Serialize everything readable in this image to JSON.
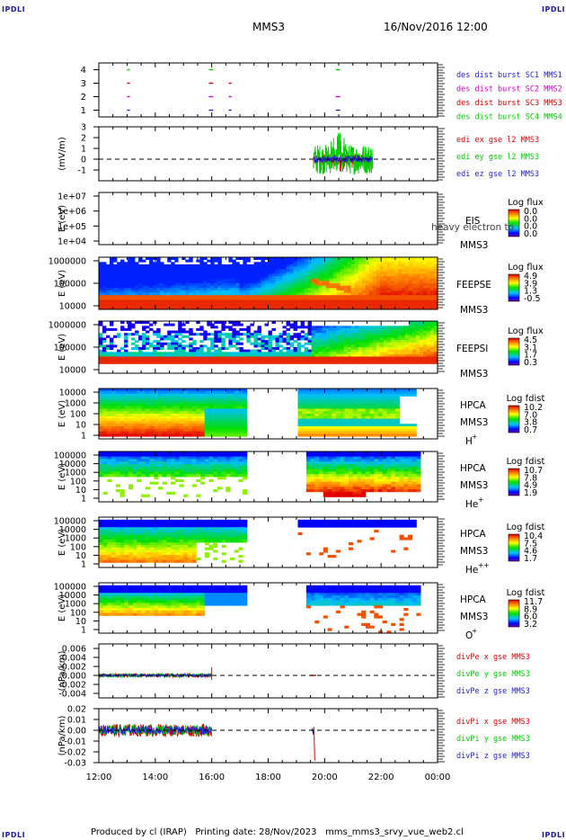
{
  "corner_label": "IPDLI",
  "header": {
    "spacecraft": "MMS3",
    "datetime": "16/Nov/2016 12:00"
  },
  "footer": {
    "credit": "Produced by cl (IRAP)",
    "printing": "Printing date: 28/Nov/2023",
    "file": "mms_mms3_srvy_vue_web2.cl"
  },
  "time_axis": {
    "ticks": [
      "12:00",
      "14:00",
      "16:00",
      "18:00",
      "20:00",
      "22:00",
      "00:00"
    ],
    "values_h": [
      12,
      14,
      16,
      18,
      20,
      22,
      24
    ]
  },
  "colors": {
    "mms1": "#2222cc",
    "mms2": "#cc00cc",
    "mms3": "#dd0000",
    "mms4": "#00cc00",
    "x": "#dd0000",
    "y": "#00cc00",
    "z": "#2222cc"
  },
  "chart_data": [
    {
      "type": "scatter",
      "id": "burst",
      "ylim": [
        0.5,
        4.5
      ],
      "yticks": [
        "1",
        "2",
        "3",
        "4"
      ],
      "series": [
        {
          "name": "des dist burst SC1 MMS1",
          "y": 1,
          "color_key": "mms1",
          "segments": [
            [
              13.0,
              13.1
            ],
            [
              15.9,
              16.05
            ],
            [
              16.6,
              16.7
            ],
            [
              20.4,
              20.55
            ]
          ]
        },
        {
          "name": "des dist burst SC2 MMS2",
          "y": 2,
          "color_key": "mms2",
          "segments": [
            [
              13.0,
              13.1
            ],
            [
              15.9,
              16.05
            ],
            [
              16.6,
              16.7
            ],
            [
              20.4,
              20.55
            ]
          ]
        },
        {
          "name": "des dist burst SC3 MMS3",
          "y": 3,
          "color_key": "mms3",
          "segments": [
            [
              13.0,
              13.1
            ],
            [
              15.9,
              16.05
            ],
            [
              16.6,
              16.7
            ]
          ]
        },
        {
          "name": "des dist burst SC4 MMS4",
          "y": 4,
          "color_key": "mms4",
          "segments": [
            [
              13.0,
              13.1
            ],
            [
              15.9,
              16.05
            ],
            [
              20.4,
              20.55
            ]
          ]
        }
      ]
    },
    {
      "type": "line",
      "id": "edi",
      "ylabel": "(mV/m)",
      "ylim": [
        -2,
        3
      ],
      "yticks": [
        "3",
        "2",
        "1",
        "0",
        "-1"
      ],
      "series": [
        {
          "name": "edi ex gse l2 MMS3",
          "color_key": "x",
          "t_range": [
            19.6,
            21.7
          ],
          "amplitude": 0.5
        },
        {
          "name": "edi ey gse l2 MMS3",
          "color_key": "y",
          "t_range": [
            19.6,
            21.7
          ],
          "amplitude": 1.4
        },
        {
          "name": "edi ez gse l2 MMS3",
          "color_key": "z",
          "t_range": [
            19.6,
            21.7
          ],
          "amplitude": 0.3
        }
      ]
    },
    {
      "type": "heatmap",
      "id": "eis",
      "ylabel": "E (eV)",
      "yticks": [
        "1e+07",
        "1e+06",
        "1e+05",
        "1e+04"
      ],
      "label_main": "EIS",
      "label_overlay": "heavy electron to",
      "label_sc": "MMS3",
      "cb_title": "Log flux",
      "cb_ticks": [
        "0.0",
        "0.0",
        "0.0",
        "0.0"
      ]
    },
    {
      "type": "heatmap",
      "id": "feepse",
      "ylabel": "E (eV)",
      "yticks": [
        "1000000",
        "100000",
        "10000"
      ],
      "label_main": "FEEPSE",
      "label_sc": "MMS3",
      "cb_title": "Log flux",
      "cb_ticks": [
        "4.9",
        "3.9",
        "1.3",
        "-0.5"
      ]
    },
    {
      "type": "heatmap",
      "id": "feepsi",
      "ylabel": "E (eV)",
      "yticks": [
        "1000000",
        "100000",
        "10000"
      ],
      "label_main": "FEEPSI",
      "label_sc": "MMS3",
      "cb_title": "Log flux",
      "cb_ticks": [
        "4.5",
        "3.1",
        "1.7",
        "0.3"
      ]
    },
    {
      "type": "heatmap",
      "id": "hpca_h",
      "ylabel": "E (eV)",
      "yticks": [
        "10000",
        "1000",
        "100",
        "10",
        "1"
      ],
      "label_main": "HPCA",
      "label_sc": "MMS3",
      "species": "H",
      "species_sup": "+",
      "cb_title": "Log fdist",
      "cb_ticks": [
        "10.2",
        "7.0",
        "3.8",
        "0.7"
      ]
    },
    {
      "type": "heatmap",
      "id": "hpca_he",
      "ylabel": "E (eV)",
      "yticks": [
        "100000",
        "10000",
        "1000",
        "100",
        "10",
        "1"
      ],
      "label_main": "HPCA",
      "label_sc": "MMS3",
      "species": "He",
      "species_sup": "+",
      "cb_title": "Log fdist",
      "cb_ticks": [
        "10.7",
        "7.8",
        "4.9",
        "1.9"
      ]
    },
    {
      "type": "heatmap",
      "id": "hpca_hepp",
      "ylabel": "E (eV)",
      "yticks": [
        "100000",
        "10000",
        "1000",
        "100",
        "10",
        "1"
      ],
      "label_main": "HPCA",
      "label_sc": "MMS3",
      "species": "He",
      "species_sup": "++",
      "cb_title": "Log fdist",
      "cb_ticks": [
        "10.4",
        "7.5",
        "4.6",
        "1.7"
      ]
    },
    {
      "type": "heatmap",
      "id": "hpca_o",
      "ylabel": "E (eV)",
      "yticks": [
        "100000",
        "10000",
        "1000",
        "100",
        "10",
        "1"
      ],
      "label_main": "HPCA",
      "label_sc": "MMS3",
      "species": "O",
      "species_sup": "+",
      "cb_title": "Log fdist",
      "cb_ticks": [
        "11.7",
        "8.9",
        "6.0",
        "3.2"
      ]
    },
    {
      "type": "line",
      "id": "divpe",
      "ylabel": "(nPa/km)",
      "ylim": [
        -0.005,
        0.007
      ],
      "yticks": [
        "0.006",
        "0.004",
        "0.002",
        "0.000",
        "-0.002",
        "-0.004"
      ],
      "series": [
        {
          "name": "divPe x gse MMS3",
          "color_key": "x",
          "t_range": [
            12.0,
            16.0
          ],
          "amplitude": 0.0004
        },
        {
          "name": "divPe y gse MMS3",
          "color_key": "y",
          "t_range": [
            12.0,
            16.0
          ],
          "amplitude": 0.0004
        },
        {
          "name": "divPe z gse MMS3",
          "color_key": "z",
          "t_range": [
            12.0,
            16.0
          ],
          "amplitude": 0.0003
        }
      ]
    },
    {
      "type": "line",
      "id": "divpi",
      "ylabel": "(nPa/km)",
      "ylim": [
        -0.03,
        0.02
      ],
      "yticks": [
        "0.02",
        "0.01",
        "0.00",
        "-0.01",
        "-0.02",
        "-0.03"
      ],
      "series": [
        {
          "name": "divPi x gse MMS3",
          "color_key": "x",
          "t_range": [
            12.0,
            16.0
          ],
          "amplitude": 0.006
        },
        {
          "name": "divPi y gse MMS3",
          "color_key": "y",
          "t_range": [
            12.0,
            16.0
          ],
          "amplitude": 0.005
        },
        {
          "name": "divPi z gse MMS3",
          "color_key": "z",
          "t_range": [
            12.0,
            16.0
          ],
          "amplitude": 0.004
        }
      ]
    }
  ]
}
